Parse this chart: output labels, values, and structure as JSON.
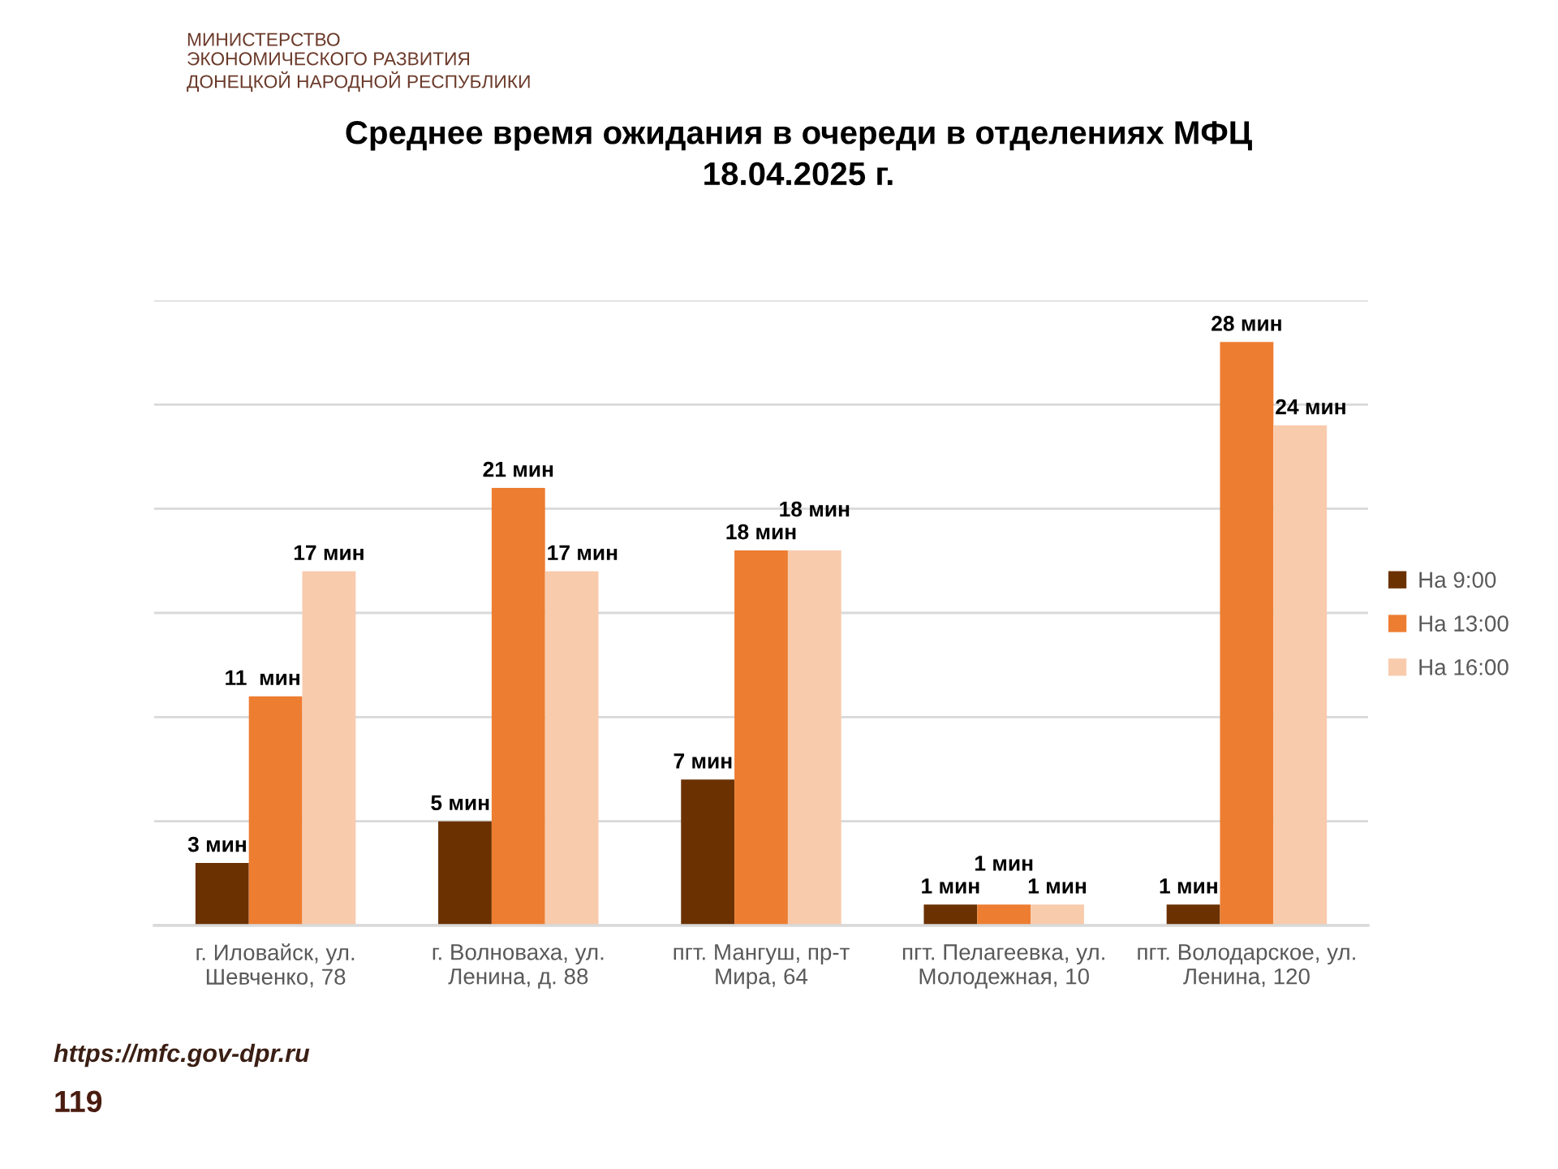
{
  "chart_data": {
    "type": "bar",
    "title": "Среднее время ожидания в очереди в отделениях МФЦ\n18.04.2025 г.",
    "categories": [
      "г. Иловайск, ул.\nШевченко, 78",
      "г. Волноваха, ул.\nЛенина, д. 88",
      "пгт. Мангуш, пр-т\nМира, 64",
      "пгт. Пелагеевка, ул.\nМолодежная, 10",
      "пгт. Володарское, ул.\nЛенина, 120"
    ],
    "series": [
      {
        "name": "На 9:00",
        "color": "#6b3100",
        "values": [
          3,
          5,
          7,
          1,
          1
        ],
        "value_labels": [
          "3 мин",
          "5 мин",
          "7 мин",
          "1 мин",
          "1 мин"
        ]
      },
      {
        "name": "На 13:00",
        "color": "#ed7d31",
        "values": [
          11,
          21,
          18,
          1,
          28
        ],
        "value_labels": [
          "11  мин",
          "21 мин",
          "18 мин",
          "1 мин",
          "28 мин"
        ]
      },
      {
        "name": "На 16:00",
        "color": "#f8cbad",
        "values": [
          17,
          17,
          18,
          1,
          24
        ],
        "value_labels": [
          "17 мин",
          "17 мин",
          "18 мин",
          "1 мин",
          "24 мин"
        ]
      }
    ],
    "ylim": [
      0,
      30
    ],
    "yticks": [
      {
        "value": 0,
        "label": null
      },
      {
        "value": 5,
        "label": null
      },
      {
        "value": 10,
        "label": null
      },
      {
        "value": 15,
        "label": null
      },
      {
        "value": 20,
        "label": null
      },
      {
        "value": 25,
        "label": null
      },
      {
        "value": 30,
        "label": null
      }
    ],
    "grid": "y",
    "legend": "right",
    "tick_labels": "x",
    "annotations": [
      "МИНИСТЕРСТВО\nЭКОНОМИЧЕСКОГО РАЗВИТИЯ\nДОНЕЦКОЙ НАРОДНОЙ РЕСПУБЛИКИ",
      "https://mfc.gov-dpr.ru",
      "119"
    ]
  }
}
